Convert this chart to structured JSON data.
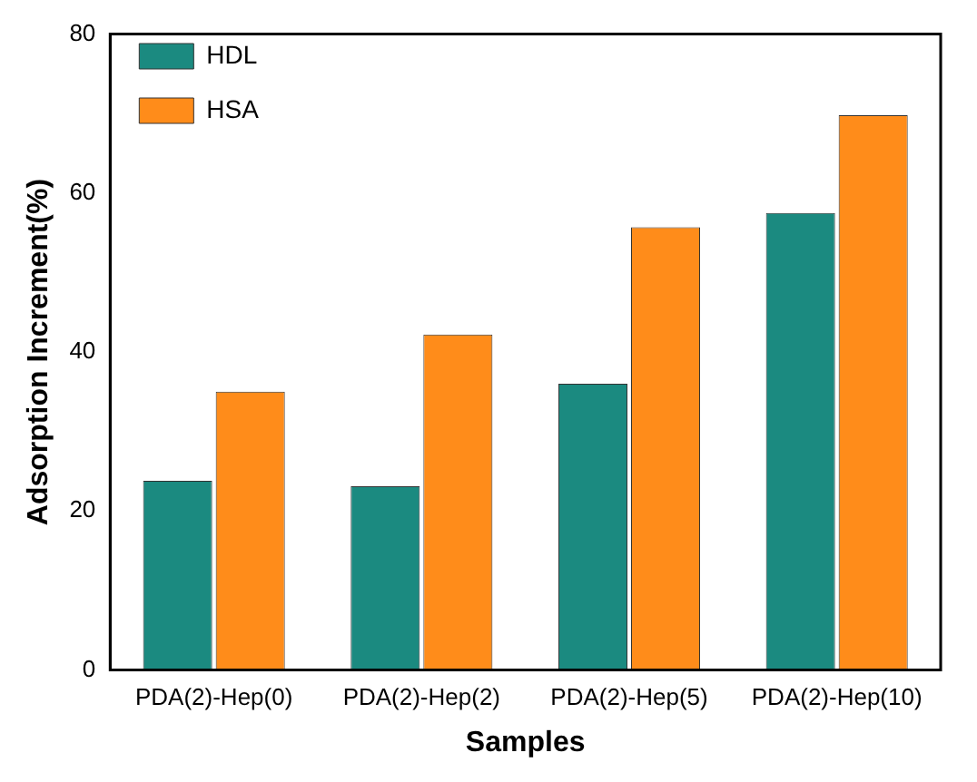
{
  "chart_data": {
    "type": "bar",
    "xlabel": "Samples",
    "ylabel": "Adsorption Increment(%)",
    "categories": [
      "PDA(2)-Hep(0)",
      "PDA(2)-Hep(2)",
      "PDA(2)-Hep(5)",
      "PDA(2)-Hep(10)"
    ],
    "series": [
      {
        "name": "HDL",
        "color": "#1b8a80",
        "values": [
          23.8,
          23.1,
          36,
          57.5
        ]
      },
      {
        "name": "HSA",
        "color": "#ff8c1a",
        "values": [
          35,
          42.2,
          55.7,
          69.8
        ]
      }
    ],
    "ylim": [
      0,
      80
    ],
    "yticks": [
      0,
      20,
      40,
      60,
      80
    ],
    "grid": false,
    "legend": "top left"
  }
}
